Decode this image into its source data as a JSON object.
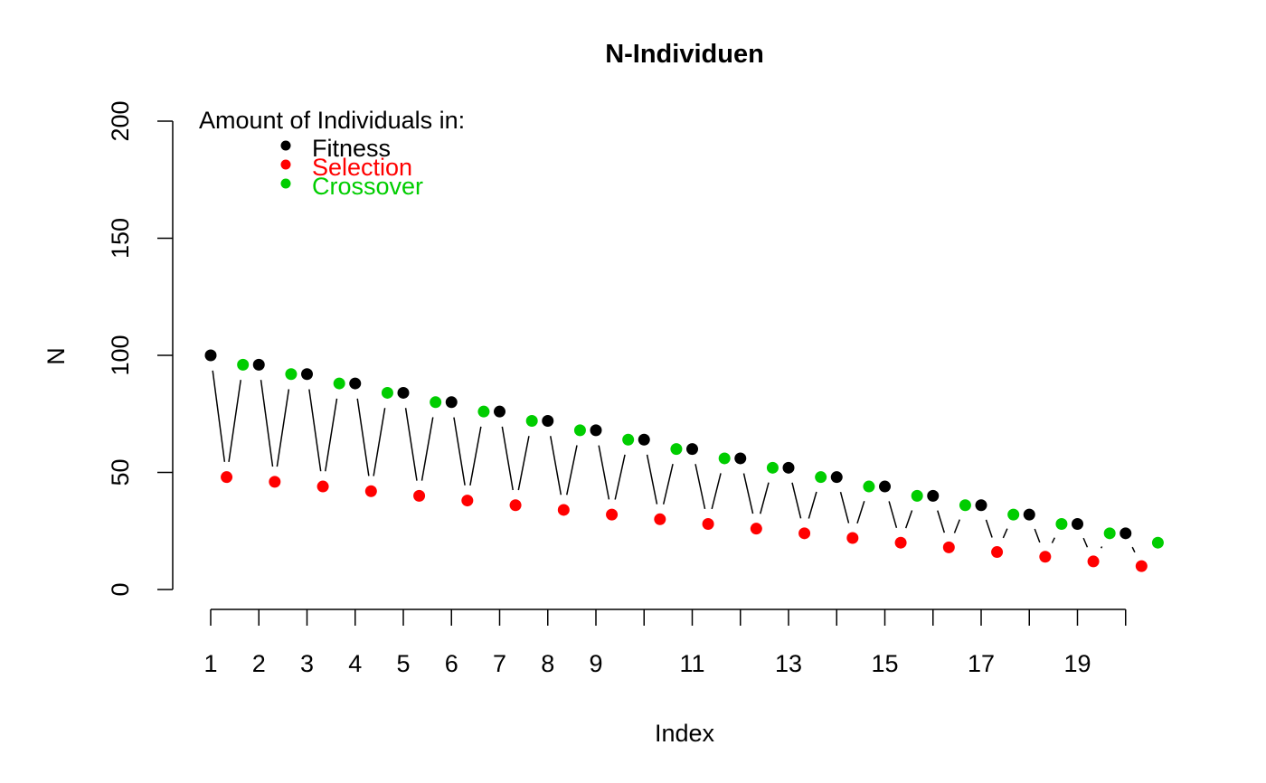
{
  "chart_data": {
    "type": "scatter",
    "title": "N-Individuen",
    "xlabel": "Index",
    "ylabel": "N",
    "xlim": [
      1,
      20.5
    ],
    "ylim": [
      0,
      200
    ],
    "x_ticks": [
      1,
      2,
      3,
      4,
      5,
      6,
      7,
      8,
      9,
      10,
      11,
      12,
      13,
      14,
      15,
      16,
      17,
      18,
      19,
      20
    ],
    "x_tick_labels": [
      "1",
      "2",
      "3",
      "4",
      "5",
      "6",
      "7",
      "8",
      "9",
      "",
      "11",
      "",
      "13",
      "",
      "15",
      "",
      "17",
      "",
      "19",
      ""
    ],
    "y_ticks": [
      0,
      50,
      100,
      150,
      200
    ],
    "y_tick_labels": [
      "0",
      "50",
      "100",
      "150",
      "200"
    ],
    "legend": {
      "title": "Amount of Individuals in:",
      "position": "top-left",
      "entries": [
        {
          "name": "Fitness",
          "color": "#000000"
        },
        {
          "name": "Selection",
          "color": "#ff0000"
        },
        {
          "name": "Crossover",
          "color": "#00cd00"
        }
      ]
    },
    "series": [
      {
        "name": "Fitness",
        "color": "#000000",
        "x": [
          1,
          2,
          3,
          4,
          5,
          6,
          7,
          8,
          9,
          10,
          11,
          12,
          13,
          14,
          15,
          16,
          17,
          18,
          19,
          20
        ],
        "values": [
          100,
          96,
          92,
          88,
          84,
          80,
          76,
          72,
          68,
          64,
          60,
          56,
          52,
          48,
          44,
          40,
          36,
          32,
          28,
          24
        ]
      },
      {
        "name": "Selection",
        "color": "#ff0000",
        "x": [
          1.33,
          2.33,
          3.33,
          4.33,
          5.33,
          6.33,
          7.33,
          8.33,
          9.33,
          10.33,
          11.33,
          12.33,
          13.33,
          14.33,
          15.33,
          16.33,
          17.33,
          18.33,
          19.33,
          20.33
        ],
        "values": [
          48,
          46,
          44,
          42,
          40,
          38,
          36,
          34,
          32,
          30,
          28,
          26,
          24,
          22,
          20,
          18,
          16,
          14,
          12,
          10
        ]
      },
      {
        "name": "Crossover",
        "color": "#00cd00",
        "x": [
          1.67,
          2.67,
          3.67,
          4.67,
          5.67,
          6.67,
          7.67,
          8.67,
          9.67,
          10.67,
          11.67,
          12.67,
          13.67,
          14.67,
          15.67,
          16.67,
          17.67,
          18.67,
          19.67,
          20.67
        ],
        "values": [
          96,
          92,
          88,
          84,
          80,
          76,
          72,
          68,
          64,
          60,
          56,
          52,
          48,
          44,
          40,
          36,
          32,
          28,
          24,
          20
        ]
      }
    ]
  }
}
